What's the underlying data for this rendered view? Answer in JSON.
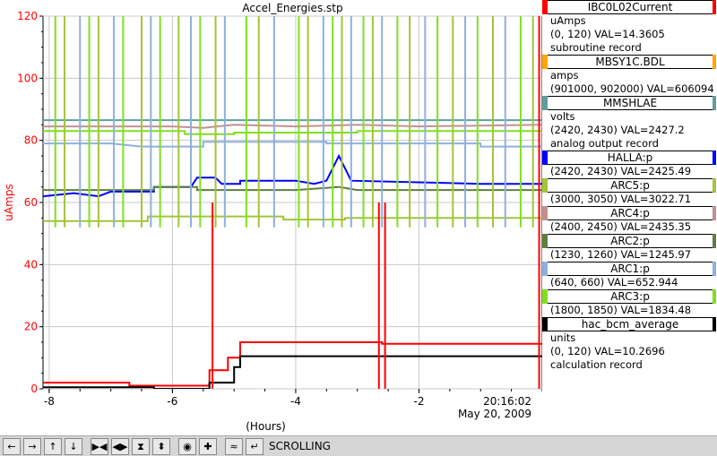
{
  "title": "Accel_Energies.stp",
  "y_axis_label": "uAmps",
  "x_axis_label": "(Hours)",
  "timestamp": "20:16:02",
  "date": "May 20, 2009",
  "legend": [
    {
      "name": "IBC0L02Current",
      "color": "#ff0000",
      "unit": "uAmps",
      "range": "(0, 120)",
      "val": "VAL=14.3605",
      "record": "subroutine record"
    },
    {
      "name": "MBSY1C.BDL",
      "color": "#ffa500",
      "unit": "amps",
      "range": "(901000, 902000)",
      "val": "VAL=606094",
      "record": ""
    },
    {
      "name": "MMSHLAE",
      "color": "#5f9e9e",
      "unit": "volts",
      "range": "(2420, 2430)",
      "val": "VAL=2427.2",
      "record": "analog output record"
    },
    {
      "name": "HALLA:p",
      "color": "#0000ff",
      "unit": "",
      "range": "(2420, 2430)",
      "val": "VAL=2425.49",
      "record": ""
    },
    {
      "name": "ARC5:p",
      "color": "#a2c53a",
      "unit": "",
      "range": "(3000, 3050)",
      "val": "VAL=3022.71",
      "record": ""
    },
    {
      "name": "ARC4:p",
      "color": "#c49090",
      "unit": "",
      "range": "(2400, 2450)",
      "val": "VAL=2435.35",
      "record": ""
    },
    {
      "name": "ARC2:p",
      "color": "#5f7f3f",
      "unit": "",
      "range": "(1230, 1260)",
      "val": "VAL=1245.97",
      "record": ""
    },
    {
      "name": "ARC1:p",
      "color": "#8fb0e0",
      "unit": "",
      "range": "(640, 660)",
      "val": "VAL=652.944",
      "record": ""
    },
    {
      "name": "ARC3:p",
      "color": "#7fe020",
      "unit": "",
      "range": "(1800, 1850)",
      "val": "VAL=1834.48",
      "record": ""
    },
    {
      "name": "hac_bcm_average",
      "color": "#000000",
      "unit": "units",
      "range": "(0, 120)",
      "val": "VAL=10.2696",
      "record": "calculation record"
    }
  ],
  "toolbar": {
    "buttons": [
      {
        "name": "scroll-left-button",
        "icon": "arrow-left-icon",
        "glyph": "←"
      },
      {
        "name": "scroll-right-button",
        "icon": "arrow-right-icon",
        "glyph": "→"
      },
      {
        "name": "scroll-up-button",
        "icon": "arrow-up-icon",
        "glyph": "↑"
      },
      {
        "name": "scroll-down-button",
        "icon": "arrow-down-icon",
        "glyph": "↓"
      },
      {
        "name": "zoom-in-x-button",
        "icon": "zoom-in-x-icon",
        "glyph": "▶◀"
      },
      {
        "name": "zoom-out-x-button",
        "icon": "zoom-out-x-icon",
        "glyph": "◀▶"
      },
      {
        "name": "zoom-in-y-button",
        "icon": "zoom-in-y-icon",
        "glyph": "⧗"
      },
      {
        "name": "zoom-out-y-button",
        "icon": "zoom-out-y-icon",
        "glyph": "⬍"
      },
      {
        "name": "auto-scale-button",
        "icon": "circle-icon",
        "glyph": "◉"
      },
      {
        "name": "add-trace-button",
        "icon": "plus-icon",
        "glyph": "✚"
      },
      {
        "name": "config-button",
        "icon": "wave-icon",
        "glyph": "≈"
      },
      {
        "name": "return-button",
        "icon": "return-icon",
        "glyph": "↵"
      }
    ],
    "mode_label": "SCROLLING"
  },
  "chart_data": {
    "type": "line",
    "title": "Accel_Energies.stp",
    "xlabel": "(Hours)",
    "ylabel": "uAmps",
    "xlim": [
      -8.1,
      0
    ],
    "ylim": [
      0,
      120
    ],
    "x_ticks": [
      "-8",
      "-6",
      "-4",
      "-2"
    ],
    "y_ticks": [
      "0",
      "20",
      "40",
      "60",
      "80",
      "100",
      "120"
    ],
    "grid": true,
    "series": [
      {
        "name": "ARC4:p",
        "color": "#c49090",
        "points": [
          [
            -8.1,
            84.5
          ],
          [
            -6,
            84.5
          ],
          [
            -5.5,
            84
          ],
          [
            -5,
            85
          ],
          [
            -4,
            84.5
          ],
          [
            -3,
            85
          ],
          [
            -2,
            84.5
          ],
          [
            0,
            85
          ]
        ]
      },
      {
        "name": "MMSHLAE",
        "color": "#5f9e9e",
        "points": [
          [
            -8.1,
            86.5
          ],
          [
            0,
            86.5
          ]
        ]
      },
      {
        "name": "ARC3:p",
        "color": "#7fe020",
        "points": [
          [
            -8.1,
            83
          ],
          [
            -5.8,
            83
          ],
          [
            -5.8,
            82
          ],
          [
            -5,
            82
          ],
          [
            -5,
            82.5
          ],
          [
            -3,
            82.5
          ],
          [
            -3,
            83
          ],
          [
            0,
            83
          ]
        ]
      },
      {
        "name": "ARC1:p",
        "color": "#8fb0e0",
        "points": [
          [
            -8.1,
            79
          ],
          [
            -7,
            79
          ],
          [
            -6.5,
            78
          ],
          [
            -5.5,
            78
          ],
          [
            -5.5,
            79.5
          ],
          [
            -3.5,
            79.5
          ],
          [
            -3.5,
            79
          ],
          [
            -1,
            79
          ],
          [
            -1,
            78
          ],
          [
            0,
            78
          ]
        ]
      },
      {
        "name": "HALLA:p",
        "color": "#0000ff",
        "points": [
          [
            -8.1,
            62
          ],
          [
            -7.6,
            63
          ],
          [
            -7.2,
            62
          ],
          [
            -7,
            63.5
          ],
          [
            -6.3,
            63.5
          ],
          [
            -6.3,
            65
          ],
          [
            -5.7,
            65
          ],
          [
            -5.6,
            68
          ],
          [
            -5.3,
            68
          ],
          [
            -5.2,
            66
          ],
          [
            -4.9,
            66
          ],
          [
            -4.9,
            67
          ],
          [
            -4,
            67
          ],
          [
            -3.7,
            66
          ],
          [
            -3.5,
            67
          ],
          [
            -3.3,
            75
          ],
          [
            -3.1,
            67
          ],
          [
            -1,
            66
          ],
          [
            0,
            66
          ]
        ]
      },
      {
        "name": "ARC2:p",
        "color": "#5f7f3f",
        "points": [
          [
            -8.1,
            64
          ],
          [
            -6.3,
            64
          ],
          [
            -6.3,
            65
          ],
          [
            -5.6,
            65
          ],
          [
            -5.6,
            64
          ],
          [
            -4,
            64
          ],
          [
            -3.3,
            65
          ],
          [
            -3,
            64
          ],
          [
            0,
            64
          ]
        ]
      },
      {
        "name": "ARC5:p",
        "color": "#a2c53a",
        "points": [
          [
            -8.1,
            54
          ],
          [
            -6.4,
            54
          ],
          [
            -6.4,
            55.5
          ],
          [
            -4.2,
            55.5
          ],
          [
            -4.2,
            54.5
          ],
          [
            -3.2,
            54.5
          ],
          [
            -3.2,
            55
          ],
          [
            0,
            55
          ]
        ]
      },
      {
        "name": "IBC0L02Current",
        "color": "#ff0000",
        "points": [
          [
            -8.1,
            2
          ],
          [
            -6.7,
            2
          ],
          [
            -6.7,
            1
          ],
          [
            -5.4,
            1
          ],
          [
            -5.4,
            6
          ],
          [
            -5.1,
            6
          ],
          [
            -5.1,
            10
          ],
          [
            -4.9,
            10
          ],
          [
            -4.9,
            15
          ],
          [
            -2.6,
            15
          ],
          [
            -2.6,
            14.5
          ],
          [
            0,
            14.5
          ]
        ]
      },
      {
        "name": "hac_bcm_average",
        "color": "#000000",
        "points": [
          [
            -8.1,
            0.5
          ],
          [
            -6.3,
            0.5
          ],
          [
            -6.3,
            0
          ],
          [
            -5.4,
            0
          ],
          [
            -5.4,
            2
          ],
          [
            -5.0,
            2
          ],
          [
            -5.0,
            7
          ],
          [
            -4.9,
            7
          ],
          [
            -4.9,
            10.5
          ],
          [
            0,
            10.5
          ]
        ]
      }
    ]
  }
}
